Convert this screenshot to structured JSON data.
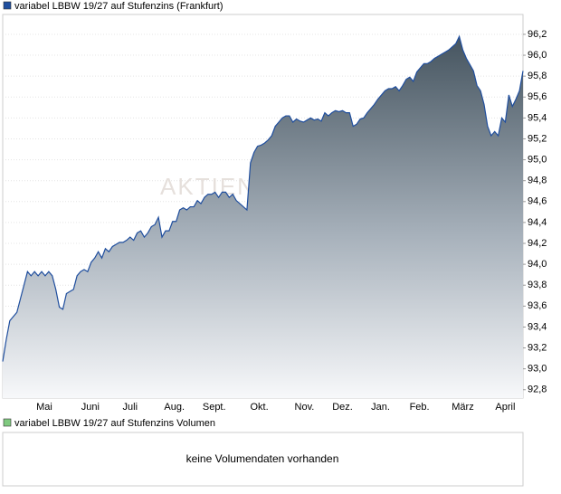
{
  "chart_data": {
    "type": "area",
    "watermark": "AKTIEN",
    "series": [
      {
        "name": "variabel LBBW 19/27 auf Stufenzins (Frankfurt)",
        "color": "#1f4e9e",
        "values": [
          93.07,
          93.28,
          93.46,
          93.5,
          93.54,
          93.67,
          93.8,
          93.93,
          93.89,
          93.93,
          93.89,
          93.93,
          93.89,
          93.93,
          93.89,
          93.76,
          93.59,
          93.57,
          93.72,
          93.74,
          93.76,
          93.89,
          93.93,
          93.95,
          93.93,
          94.02,
          94.06,
          94.12,
          94.06,
          94.15,
          94.12,
          94.17,
          94.19,
          94.21,
          94.21,
          94.23,
          94.26,
          94.23,
          94.3,
          94.32,
          94.26,
          94.3,
          94.36,
          94.38,
          94.45,
          94.26,
          94.32,
          94.32,
          94.41,
          94.41,
          94.52,
          94.54,
          94.52,
          94.55,
          94.55,
          94.61,
          94.58,
          94.64,
          94.67,
          94.67,
          94.69,
          94.64,
          94.69,
          94.69,
          94.64,
          94.67,
          94.61,
          94.58,
          94.55,
          94.52,
          94.97,
          95.07,
          95.13,
          95.14,
          95.16,
          95.19,
          95.23,
          95.32,
          95.36,
          95.4,
          95.42,
          95.42,
          95.36,
          95.39,
          95.37,
          95.36,
          95.38,
          95.4,
          95.38,
          95.39,
          95.37,
          95.45,
          95.42,
          95.45,
          95.47,
          95.46,
          95.47,
          95.45,
          95.45,
          95.32,
          95.34,
          95.39,
          95.4,
          95.45,
          95.49,
          95.53,
          95.58,
          95.62,
          95.66,
          95.68,
          95.68,
          95.7,
          95.66,
          95.71,
          95.77,
          95.79,
          95.75,
          95.84,
          95.88,
          95.92,
          95.92,
          95.94,
          95.97,
          95.99,
          96.01,
          96.03,
          96.05,
          96.08,
          96.11,
          96.18,
          96.05,
          95.97,
          95.91,
          95.85,
          95.71,
          95.66,
          95.53,
          95.32,
          95.23,
          95.27,
          95.23,
          95.4,
          95.36,
          95.62,
          95.51,
          95.58,
          95.66,
          95.85
        ]
      }
    ],
    "xlim": [
      0,
      147
    ],
    "xticks": [
      {
        "value": 11.75,
        "label": "Mai"
      },
      {
        "value": 24.75,
        "label": "Juni"
      },
      {
        "value": 36,
        "label": "Juli"
      },
      {
        "value": 48.5,
        "label": "Aug."
      },
      {
        "value": 59.75,
        "label": "Sept."
      },
      {
        "value": 72.5,
        "label": "Okt."
      },
      {
        "value": 85.25,
        "label": "Nov."
      },
      {
        "value": 96,
        "label": "Dez."
      },
      {
        "value": 106.75,
        "label": "Jan."
      },
      {
        "value": 117.75,
        "label": "Feb."
      },
      {
        "value": 130,
        "label": "März"
      },
      {
        "value": 142,
        "label": "April"
      }
    ],
    "ylim": [
      92.72,
      96.39
    ],
    "yticks": [
      {
        "value": 92.8,
        "label": "92,8"
      },
      {
        "value": 93.0,
        "label": "93,0"
      },
      {
        "value": 93.2,
        "label": "93,2"
      },
      {
        "value": 93.4,
        "label": "93,4"
      },
      {
        "value": 93.6,
        "label": "93,6"
      },
      {
        "value": 93.8,
        "label": "93,8"
      },
      {
        "value": 94.0,
        "label": "94,0"
      },
      {
        "value": 94.2,
        "label": "94,2"
      },
      {
        "value": 94.4,
        "label": "94,4"
      },
      {
        "value": 94.6,
        "label": "94,6"
      },
      {
        "value": 94.8,
        "label": "94,8"
      },
      {
        "value": 95.0,
        "label": "95,0"
      },
      {
        "value": 95.2,
        "label": "95,2"
      },
      {
        "value": 95.4,
        "label": "95,4"
      },
      {
        "value": 95.6,
        "label": "95,6"
      },
      {
        "value": 95.8,
        "label": "95,8"
      },
      {
        "value": 96.0,
        "label": "96,0"
      },
      {
        "value": 96.2,
        "label": "96,2"
      }
    ],
    "grid": true
  },
  "volume_panel": {
    "legend": "variabel LBBW 19/27 auf Stufenzins Volumen",
    "legend_color": "#7fc97f",
    "message": "keine Volumendaten vorhanden"
  }
}
